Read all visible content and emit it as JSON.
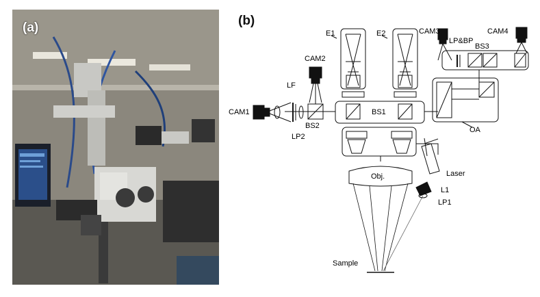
{
  "panel_a": {
    "label": "(a)"
  },
  "panel_b": {
    "label": "(b)",
    "components": {
      "e1": "E1",
      "e2": "E2",
      "cam1": "CAM1",
      "cam2": "CAM2",
      "cam3": "CAM3",
      "cam4": "CAM4",
      "lf": "LF",
      "lp2": "LP2",
      "bs2": "BS2",
      "bs1": "BS1",
      "bs3": "BS3",
      "lpbp": "LP&BP",
      "oa": "OA",
      "obj": "Obj.",
      "laser": "Laser",
      "l1": "L1",
      "lp1": "LP1",
      "sample": "Sample"
    }
  }
}
